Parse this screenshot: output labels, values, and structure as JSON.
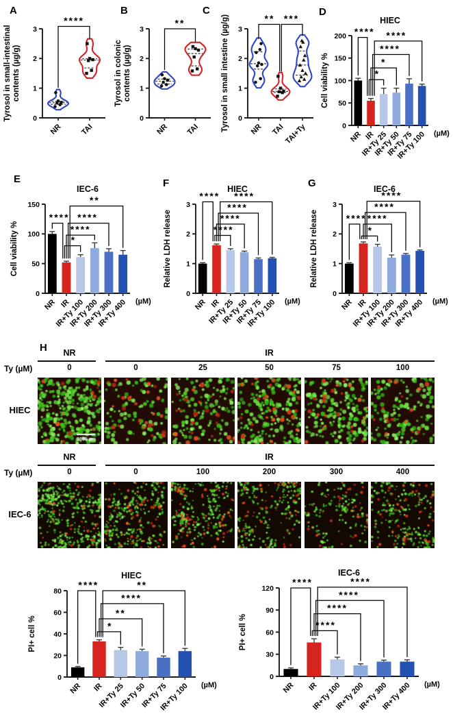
{
  "panel_letters": {
    "A": "A",
    "B": "B",
    "C": "C",
    "D": "D",
    "E": "E",
    "F": "F",
    "G": "G",
    "H": "H"
  },
  "colors": {
    "bar_series": [
      "#000000",
      "#d6241f",
      "#b6c7e8",
      "#8faadc",
      "#4a70c4",
      "#2351b2"
    ],
    "violin_blue": "#2b44c8",
    "violin_red": "#d42222",
    "axis": "#1a1a1a",
    "error_bar": "#3a3a3a",
    "micro_green": "#52d628",
    "micro_red": "#e03414",
    "micro_bg_hiec": "#220b05",
    "micro_bg_iec6": "#140802"
  },
  "chart_data": [
    {
      "id": "A",
      "type": "violin",
      "title": "",
      "ylabel": "Tyrosol in small-intestinal contents (µg/g)",
      "ylabel_lines": [
        "Tyrosol in small-intestinal",
        "contents (µg/g)"
      ],
      "ylim": [
        0,
        3
      ],
      "yticks": [
        0,
        1,
        2,
        3
      ],
      "categories": [
        "NR",
        "TAI"
      ],
      "groups": [
        {
          "name": "NR",
          "color": "#2b44c8",
          "marker": "circle",
          "points": [
            0.38,
            0.44,
            0.5,
            0.52,
            0.57,
            0.85
          ]
        },
        {
          "name": "TAI",
          "color": "#d42222",
          "marker": "square",
          "points": [
            1.5,
            1.6,
            1.93,
            1.96,
            2.0,
            2.5
          ]
        }
      ],
      "sig": [
        {
          "i": 0,
          "j": 1,
          "label": "****",
          "y": 3.08
        }
      ]
    },
    {
      "id": "B",
      "type": "violin",
      "title": "",
      "ylabel": "Tyrosol in colonic contents (µg/g)",
      "ylabel_lines": [
        "Tyrosol in colonic",
        "contents (µg/g)"
      ],
      "ylim": [
        0,
        3
      ],
      "yticks": [
        0,
        1,
        2,
        3
      ],
      "categories": [
        "NR",
        "TAI"
      ],
      "groups": [
        {
          "name": "NR",
          "color": "#2b44c8",
          "marker": "circle",
          "points": [
            1.07,
            1.12,
            1.2,
            1.27,
            1.32,
            1.45
          ]
        },
        {
          "name": "TAI",
          "color": "#d42222",
          "marker": "square",
          "points": [
            1.58,
            1.65,
            2.05,
            2.28,
            2.33,
            2.4
          ]
        }
      ],
      "sig": [
        {
          "i": 0,
          "j": 1,
          "label": "**",
          "y": 3.0
        }
      ]
    },
    {
      "id": "C",
      "type": "violin",
      "title": "",
      "ylabel": "Tyrosol in small intestine (µg/g)",
      "ylabel_lines": [
        "Tyrosol in small intestine (µg/g)"
      ],
      "ylim": [
        0,
        3
      ],
      "yticks": [
        0,
        1,
        2,
        3
      ],
      "categories": [
        "NR",
        "TAI",
        "TAI+Ty"
      ],
      "groups": [
        {
          "name": "NR",
          "color": "#2b44c8",
          "marker": "circle",
          "points": [
            1.2,
            1.32,
            1.75,
            1.8,
            1.85,
            2.2,
            2.3,
            2.5
          ]
        },
        {
          "name": "TAI",
          "color": "#d42222",
          "marker": "square",
          "points": [
            0.73,
            0.85,
            0.88,
            0.9,
            1.0,
            1.4
          ]
        },
        {
          "name": "TAI+Ty",
          "color": "#2b44c8",
          "marker": "triangle",
          "points": [
            1.25,
            1.3,
            1.38,
            1.5,
            1.6,
            1.78,
            1.95,
            2.1,
            2.4,
            2.55,
            2.6
          ]
        }
      ],
      "sig": [
        {
          "i": 0,
          "j": 1,
          "label": "**",
          "y": 3.15
        },
        {
          "i": 1,
          "j": 2,
          "label": "***",
          "y": 3.15
        }
      ]
    },
    {
      "id": "D",
      "type": "bar",
      "title": "HIEC",
      "ylabel": "Cell viability %",
      "ylabel_lines": [
        "Cell viability %"
      ],
      "ylim": [
        0,
        200
      ],
      "yticks": [
        0,
        50,
        100,
        150,
        200
      ],
      "categories": [
        "NR",
        "IR",
        "IR+Ty 25",
        "IR+Ty 50",
        "IR+Ty 75",
        "IR+Ty 100"
      ],
      "values": [
        100,
        55,
        70,
        73,
        93,
        88
      ],
      "errors": [
        5,
        5,
        13,
        10,
        11,
        4
      ],
      "xunit": "(µM)",
      "sig": [
        {
          "i": 0,
          "j": 1,
          "label": "****",
          "y": 196
        },
        {
          "i": 1,
          "j": 2,
          "label": "*",
          "y": 102
        },
        {
          "i": 1,
          "j": 3,
          "label": "*",
          "y": 128
        },
        {
          "i": 1,
          "j": 4,
          "label": "****",
          "y": 158
        },
        {
          "i": 1,
          "j": 5,
          "label": "****",
          "y": 188
        }
      ]
    },
    {
      "id": "E",
      "type": "bar",
      "title": "IEC-6",
      "ylabel": "Cell viability %",
      "ylabel_lines": [
        "Cell viability %"
      ],
      "ylim": [
        0,
        150
      ],
      "yticks": [
        0,
        50,
        100,
        150
      ],
      "categories": [
        "NR",
        "IR",
        "IR+Ty 100",
        "IR+Ty 200",
        "IR+Ty 300",
        "IR+Ty 400"
      ],
      "values": [
        100,
        52,
        61,
        76,
        70,
        65
      ],
      "errors": [
        4,
        2,
        4,
        9,
        5,
        7
      ],
      "xunit": "(µM)",
      "sig": [
        {
          "i": 0,
          "j": 1,
          "label": "****",
          "y": 118
        },
        {
          "i": 1,
          "j": 2,
          "label": "*",
          "y": 80
        },
        {
          "i": 1,
          "j": 3,
          "label": "****",
          "y": 98
        },
        {
          "i": 1,
          "j": 4,
          "label": "****",
          "y": 118
        },
        {
          "i": 1,
          "j": 5,
          "label": "**",
          "y": 147
        }
      ]
    },
    {
      "id": "F",
      "type": "bar",
      "title": "HIEC",
      "ylabel": "Relative LDH release",
      "ylabel_lines": [
        "Relative LDH release"
      ],
      "ylim": [
        0,
        3
      ],
      "yticks": [
        0,
        1,
        2,
        3
      ],
      "categories": [
        "NR",
        "IR",
        "IR+Ty 25",
        "IR+Ty 50",
        "IR+Ty 75",
        "IR+Ty 100"
      ],
      "values": [
        1.0,
        1.62,
        1.45,
        1.38,
        1.15,
        1.18
      ],
      "errors": [
        0.03,
        0.04,
        0.05,
        0.04,
        0.04,
        0.03
      ],
      "xunit": "(µM)",
      "sig": [
        {
          "i": 0,
          "j": 1,
          "label": "****",
          "y": 3.08
        },
        {
          "i": 1,
          "j": 2,
          "label": "****",
          "y": 1.95
        },
        {
          "i": 1,
          "j": 3,
          "label": "****",
          "y": 2.33
        },
        {
          "i": 1,
          "j": 4,
          "label": "****",
          "y": 2.7
        },
        {
          "i": 1,
          "j": 5,
          "label": "****",
          "y": 3.08
        }
      ]
    },
    {
      "id": "G",
      "type": "bar",
      "title": "IEC-6",
      "ylabel": "Relative LDH release",
      "ylabel_lines": [
        "Relative LDH release"
      ],
      "ylim": [
        0,
        3
      ],
      "yticks": [
        0,
        1,
        2,
        3
      ],
      "categories": [
        "NR",
        "IR",
        "IR+Ty 100",
        "IR+Ty 200",
        "IR+Ty 300",
        "IR+Ty 400"
      ],
      "values": [
        1.0,
        1.68,
        1.57,
        1.2,
        1.3,
        1.43
      ],
      "errors": [
        0.03,
        0.05,
        0.08,
        0.09,
        0.04,
        0.03
      ],
      "xunit": "(µM)",
      "sig": [
        {
          "i": 0,
          "j": 1,
          "label": "****",
          "y": 2.33
        },
        {
          "i": 1,
          "j": 2,
          "label": "*",
          "y": 1.93
        },
        {
          "i": 1,
          "j": 3,
          "label": "****",
          "y": 2.33
        },
        {
          "i": 1,
          "j": 4,
          "label": "****",
          "y": 2.72
        },
        {
          "i": 1,
          "j": 5,
          "label": "****",
          "y": 3.1
        }
      ]
    },
    {
      "id": "PH",
      "type": "bar",
      "title": "HIEC",
      "ylabel": "PI+ cell %",
      "ylabel_lines": [
        "PI+ cell %"
      ],
      "ylim": [
        0,
        80
      ],
      "yticks": [
        0,
        20,
        40,
        60,
        80
      ],
      "categories": [
        "NR",
        "IR",
        "IR+Ty 25",
        "IR+Ty 50",
        "IR+Ty 75",
        "IR+Ty 100"
      ],
      "values": [
        9,
        33,
        25,
        24,
        18,
        24
      ],
      "errors": [
        0.8,
        1.5,
        2.5,
        1.8,
        1.5,
        2.5
      ],
      "xunit": "(µM)",
      "sig": [
        {
          "i": 0,
          "j": 1,
          "label": "****",
          "y": 80
        },
        {
          "i": 1,
          "j": 2,
          "label": "*",
          "y": 42
        },
        {
          "i": 1,
          "j": 3,
          "label": "**",
          "y": 54
        },
        {
          "i": 1,
          "j": 4,
          "label": "****",
          "y": 68
        },
        {
          "i": 1,
          "j": 5,
          "label": "**",
          "y": 80
        }
      ]
    },
    {
      "id": "PI",
      "type": "bar",
      "title": "IEC-6",
      "ylabel": "PI+ cell %",
      "ylabel_lines": [
        "PI+ cell %"
      ],
      "ylim": [
        0,
        120
      ],
      "yticks": [
        0,
        30,
        60,
        90,
        120
      ],
      "categories": [
        "NR",
        "IR",
        "IR+Ty 100",
        "IR+Ty 200",
        "IR+Ty 300",
        "IR+Ty 400"
      ],
      "values": [
        10,
        46,
        23,
        15,
        20,
        20
      ],
      "errors": [
        1.5,
        5,
        3,
        2,
        2,
        2.5
      ],
      "xunit": "(µM)",
      "sig": [
        {
          "i": 0,
          "j": 1,
          "label": "****",
          "y": 120
        },
        {
          "i": 1,
          "j": 2,
          "label": "****",
          "y": 62
        },
        {
          "i": 1,
          "j": 3,
          "label": "****",
          "y": 85
        },
        {
          "i": 1,
          "j": 4,
          "label": "****",
          "y": 103
        },
        {
          "i": 1,
          "j": 5,
          "label": "****",
          "y": 121
        }
      ]
    }
  ],
  "microscopy": {
    "dose_row_label": "Ty (µM)",
    "scale_bar_label": "1000 µm",
    "blocks": [
      {
        "row_label": "HIEC",
        "group_headers": [
          {
            "label": "NR",
            "cols": [
              0
            ]
          },
          {
            "label": "IR",
            "cols": [
              1,
              2,
              3,
              4,
              5
            ]
          }
        ],
        "doses": [
          "0",
          "0",
          "25",
          "50",
          "75",
          "100"
        ],
        "images": [
          {
            "green": 290,
            "red": 12
          },
          {
            "green": 95,
            "red": 28
          },
          {
            "green": 135,
            "red": 24
          },
          {
            "green": 195,
            "red": 30
          },
          {
            "green": 190,
            "red": 24
          },
          {
            "green": 150,
            "red": 18
          }
        ],
        "style": {
          "bg": "#220b05",
          "dot": 2.3,
          "clusters": 0
        }
      },
      {
        "row_label": "IEC-6",
        "group_headers": [
          {
            "label": "NR",
            "cols": [
              0
            ]
          },
          {
            "label": "IR",
            "cols": [
              1,
              2,
              3,
              4,
              5
            ]
          }
        ],
        "doses": [
          "0",
          "0",
          "100",
          "200",
          "300",
          "400"
        ],
        "images": [
          {
            "green": 380,
            "red": 34
          },
          {
            "green": 230,
            "red": 60
          },
          {
            "green": 230,
            "red": 62
          },
          {
            "green": 185,
            "red": 50
          },
          {
            "green": 130,
            "red": 38
          },
          {
            "green": 195,
            "red": 48
          }
        ],
        "style": {
          "bg": "#140802",
          "dot": 1.5,
          "clusters": 14
        }
      }
    ]
  }
}
